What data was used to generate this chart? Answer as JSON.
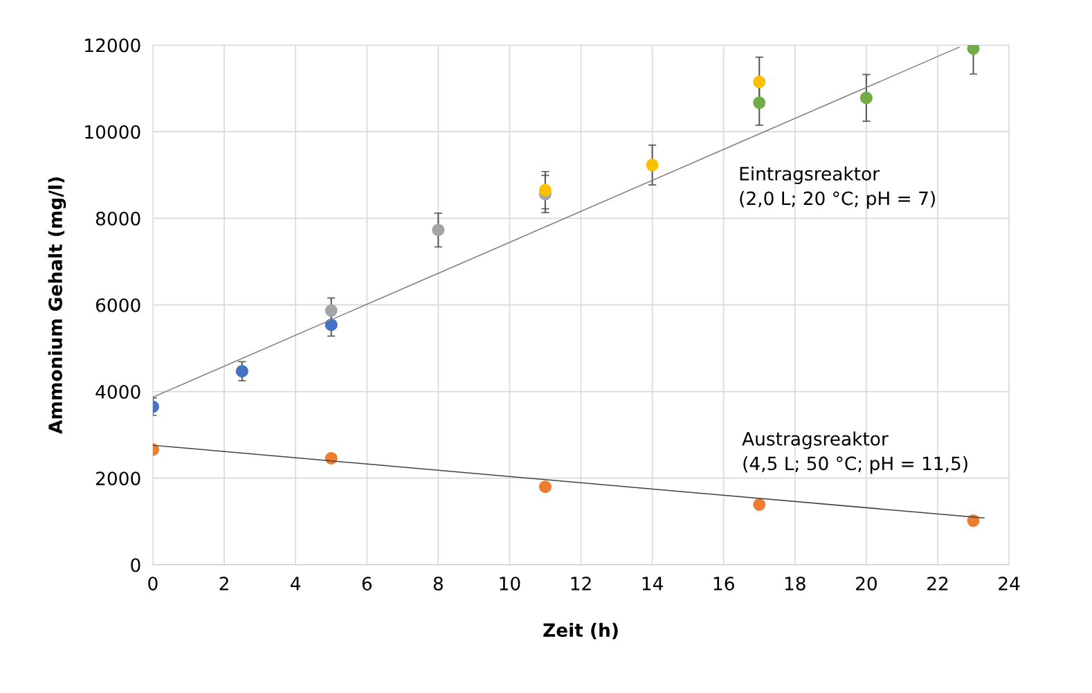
{
  "chart_data": {
    "type": "scatter",
    "xlabel": "Zeit (h)",
    "ylabel": "Ammonium Gehalt (mg/l)",
    "xlim": [
      0,
      24
    ],
    "xticks": [
      0,
      2,
      4,
      6,
      8,
      10,
      12,
      14,
      16,
      18,
      20,
      22,
      24
    ],
    "ylim": [
      0,
      12000
    ],
    "yticks": [
      0,
      2000,
      4000,
      6000,
      8000,
      10000,
      12000
    ],
    "grid": true,
    "legend": false,
    "marker": "circle",
    "series": [
      {
        "color": "#4472c4",
        "x": [
          0,
          2.5,
          5
        ],
        "values": [
          3650,
          4470,
          5540
        ],
        "errors": [
          200,
          220,
          260
        ]
      },
      {
        "color": "#a5a5a5",
        "x": [
          5,
          8,
          11
        ],
        "values": [
          5870,
          7730,
          8560
        ],
        "errors": [
          290,
          390,
          430
        ]
      },
      {
        "color": "#ffc000",
        "x": [
          11,
          14,
          17
        ],
        "values": [
          8650,
          9230,
          11150
        ],
        "errors": [
          430,
          460,
          570
        ]
      },
      {
        "color": "#70ad47",
        "x": [
          17,
          20,
          23
        ],
        "values": [
          10670,
          10780,
          11920
        ],
        "errors": [
          520,
          540,
          [
            11330,
            11920
          ]
        ]
      },
      {
        "color": "#ed7d31",
        "x": [
          0,
          5,
          11,
          17,
          23
        ],
        "values": [
          2660,
          2460,
          1800,
          1390,
          1020
        ]
      },
      {
        "type": "line",
        "color": "#7f7f7f",
        "x": [
          0,
          22.6
        ],
        "values": [
          3870,
          11950
        ],
        "marker": "none"
      },
      {
        "type": "line",
        "color": "#404040",
        "x": [
          0,
          23.3
        ],
        "values": [
          2760,
          1080
        ],
        "marker": "none"
      }
    ],
    "annotations": [
      "Eintragsreaktor\n(2,0 L; 20 °C; pH = 7)",
      "Austragsreaktor\n(4,5 L; 50 °C; pH = 11,5)"
    ]
  }
}
